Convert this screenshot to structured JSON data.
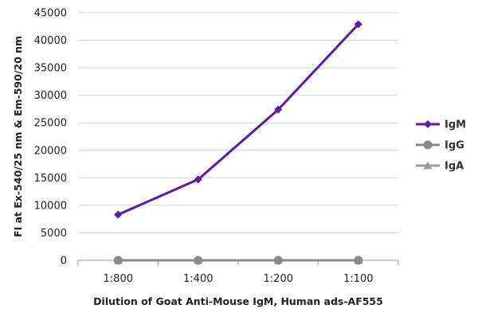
{
  "chart_data": {
    "type": "line",
    "categories": [
      "1:800",
      "1:400",
      "1:200",
      "1:100"
    ],
    "series": [
      {
        "name": "IgM",
        "values": [
          8300,
          14700,
          27400,
          42900
        ],
        "color": "#5b1ca3",
        "marker": "diamond"
      },
      {
        "name": "IgG",
        "values": [
          0,
          0,
          0,
          0
        ],
        "color": "#8a8a8a",
        "marker": "circle"
      },
      {
        "name": "IgA",
        "values": [
          0,
          0,
          0,
          0
        ],
        "color": "#9a9a9a",
        "marker": "triangle"
      }
    ],
    "xlabel": "Dilution of Goat Anti-Mouse IgM, Human ads-AF555",
    "ylabel": "FI at Ex-540/25 nm & Em-590/20 nm",
    "ylim": [
      0,
      45000
    ],
    "yticks": [
      0,
      5000,
      10000,
      15000,
      20000,
      25000,
      30000,
      35000,
      40000,
      45000
    ],
    "grid": true,
    "legend_position": "right"
  }
}
